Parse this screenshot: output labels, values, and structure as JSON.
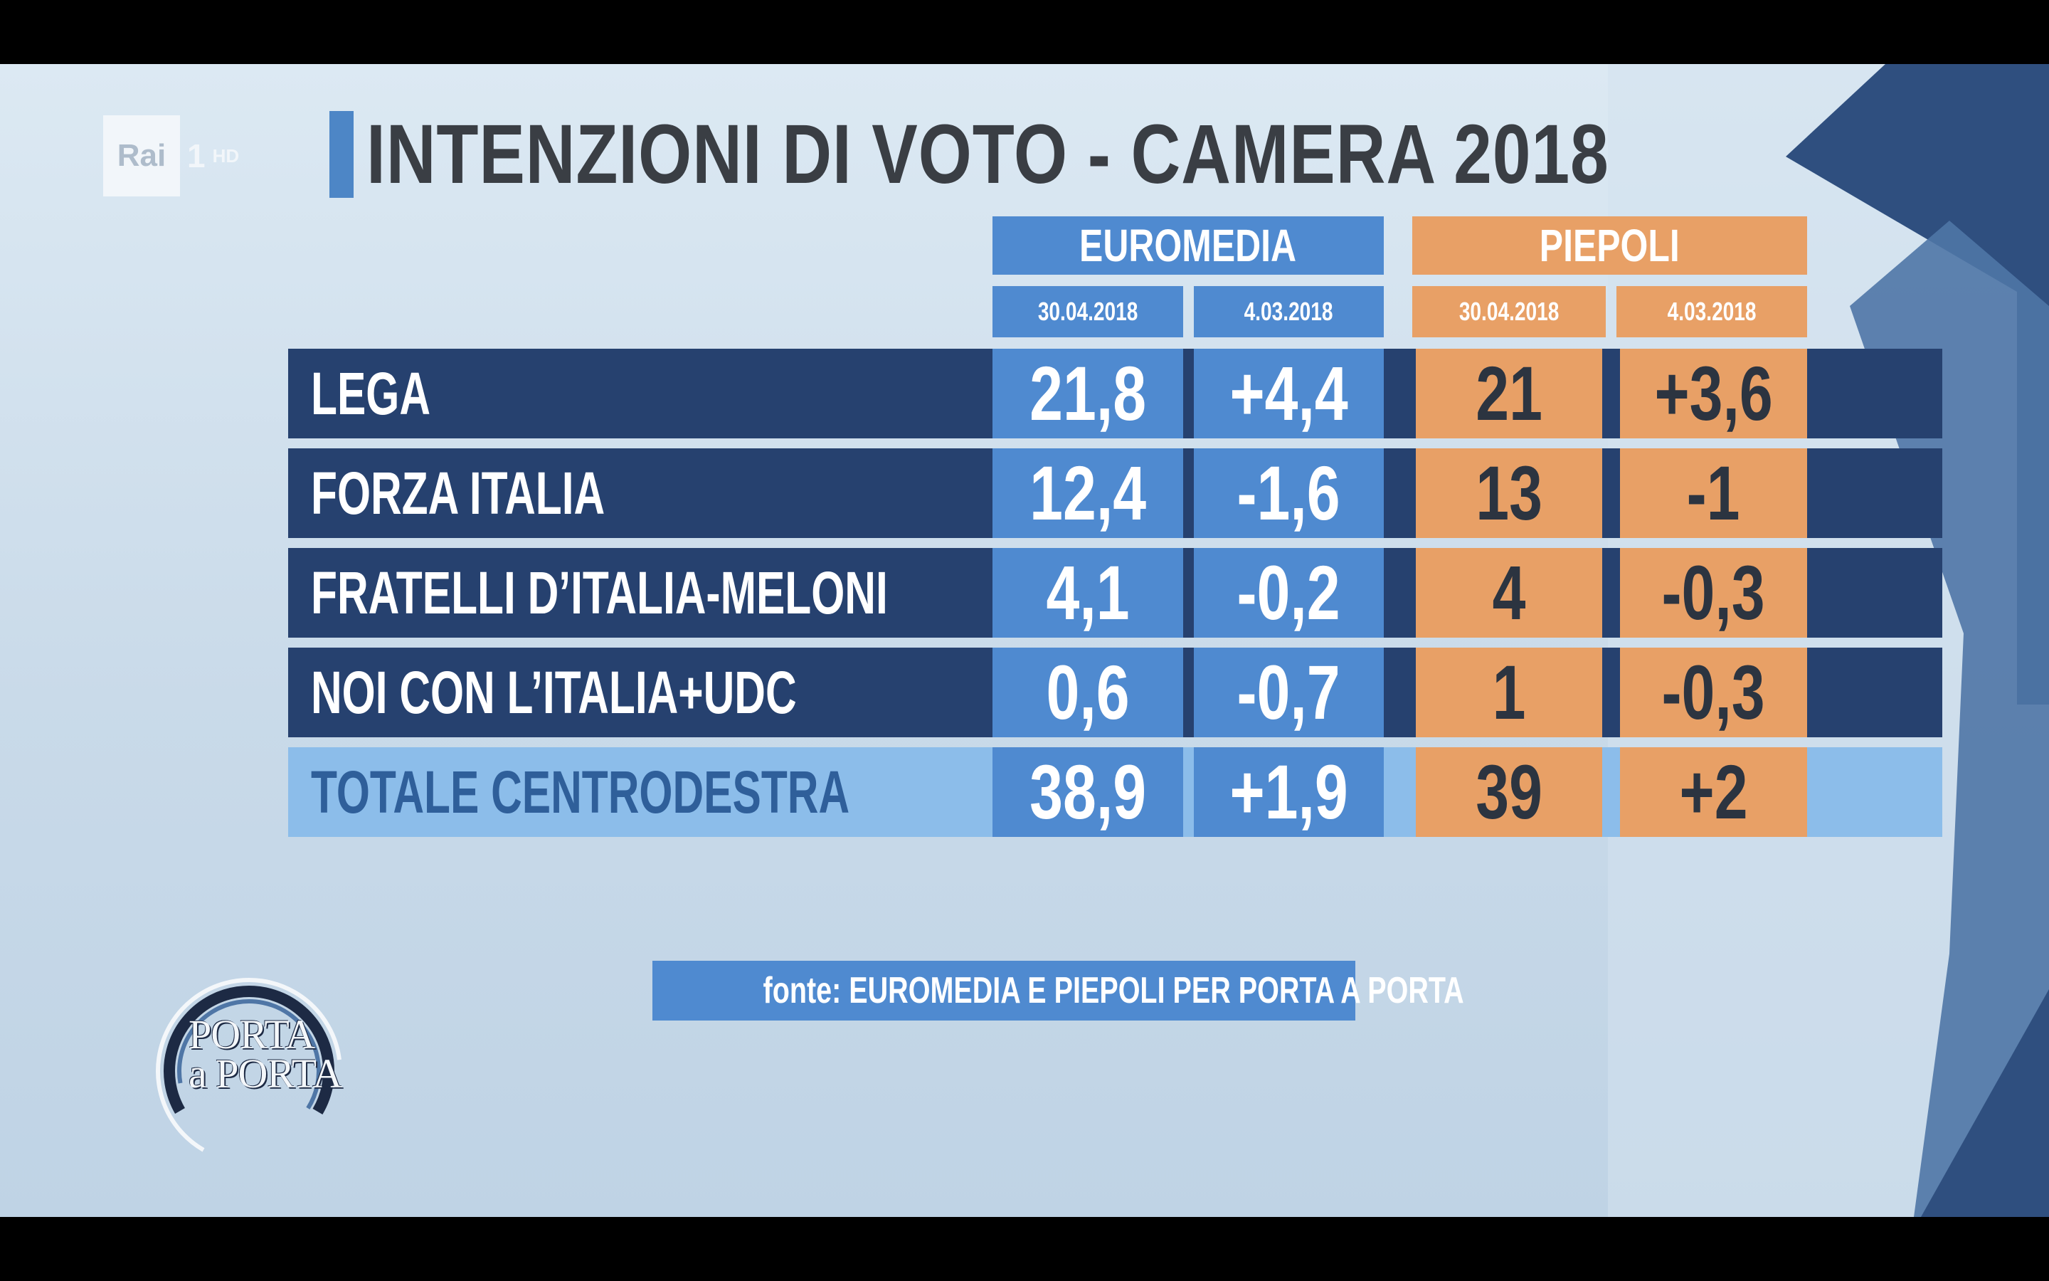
{
  "channel": {
    "brand": "Rai",
    "number": "1",
    "quality": "HD"
  },
  "title": "INTENZIONI DI VOTO - CAMERA 2018",
  "colors": {
    "blue_header": "#4f8ad0",
    "orange_header": "#e8a066",
    "dark_row": "#26416f",
    "total_row": "#8cbdea",
    "title_text": "#3a3e44"
  },
  "chart_data": {
    "type": "table",
    "title": "INTENZIONI DI VOTO - CAMERA 2018",
    "sources": [
      {
        "name": "EUROMEDIA",
        "dates": [
          "30.04.2018",
          "4.03.2018"
        ]
      },
      {
        "name": "PIEPOLI",
        "dates": [
          "30.04.2018",
          "4.03.2018"
        ]
      }
    ],
    "rows": [
      {
        "party": "LEGA",
        "euromedia": "21,8",
        "euromedia_change": "+4,4",
        "piepoli": "21",
        "piepoli_change": "+3,6"
      },
      {
        "party": "FORZA ITALIA",
        "euromedia": "12,4",
        "euromedia_change": "-1,6",
        "piepoli": "13",
        "piepoli_change": "-1"
      },
      {
        "party": "FRATELLI D’ITALIA-MELONI",
        "euromedia": "4,1",
        "euromedia_change": "-0,2",
        "piepoli": "4",
        "piepoli_change": "-0,3"
      },
      {
        "party": "NOI CON L’ITALIA+UDC",
        "euromedia": "0,6",
        "euromedia_change": "-0,7",
        "piepoli": "1",
        "piepoli_change": "-0,3"
      }
    ],
    "total": {
      "party": "TOTALE CENTRODESTRA",
      "euromedia": "38,9",
      "euromedia_change": "+1,9",
      "piepoli": "39",
      "piepoli_change": "+2"
    }
  },
  "source_note": "fonte: EUROMEDIA E PIEPOLI PER PORTA A PORTA",
  "show_logo": {
    "line1": "PORTA",
    "line2": "a PORTA"
  }
}
